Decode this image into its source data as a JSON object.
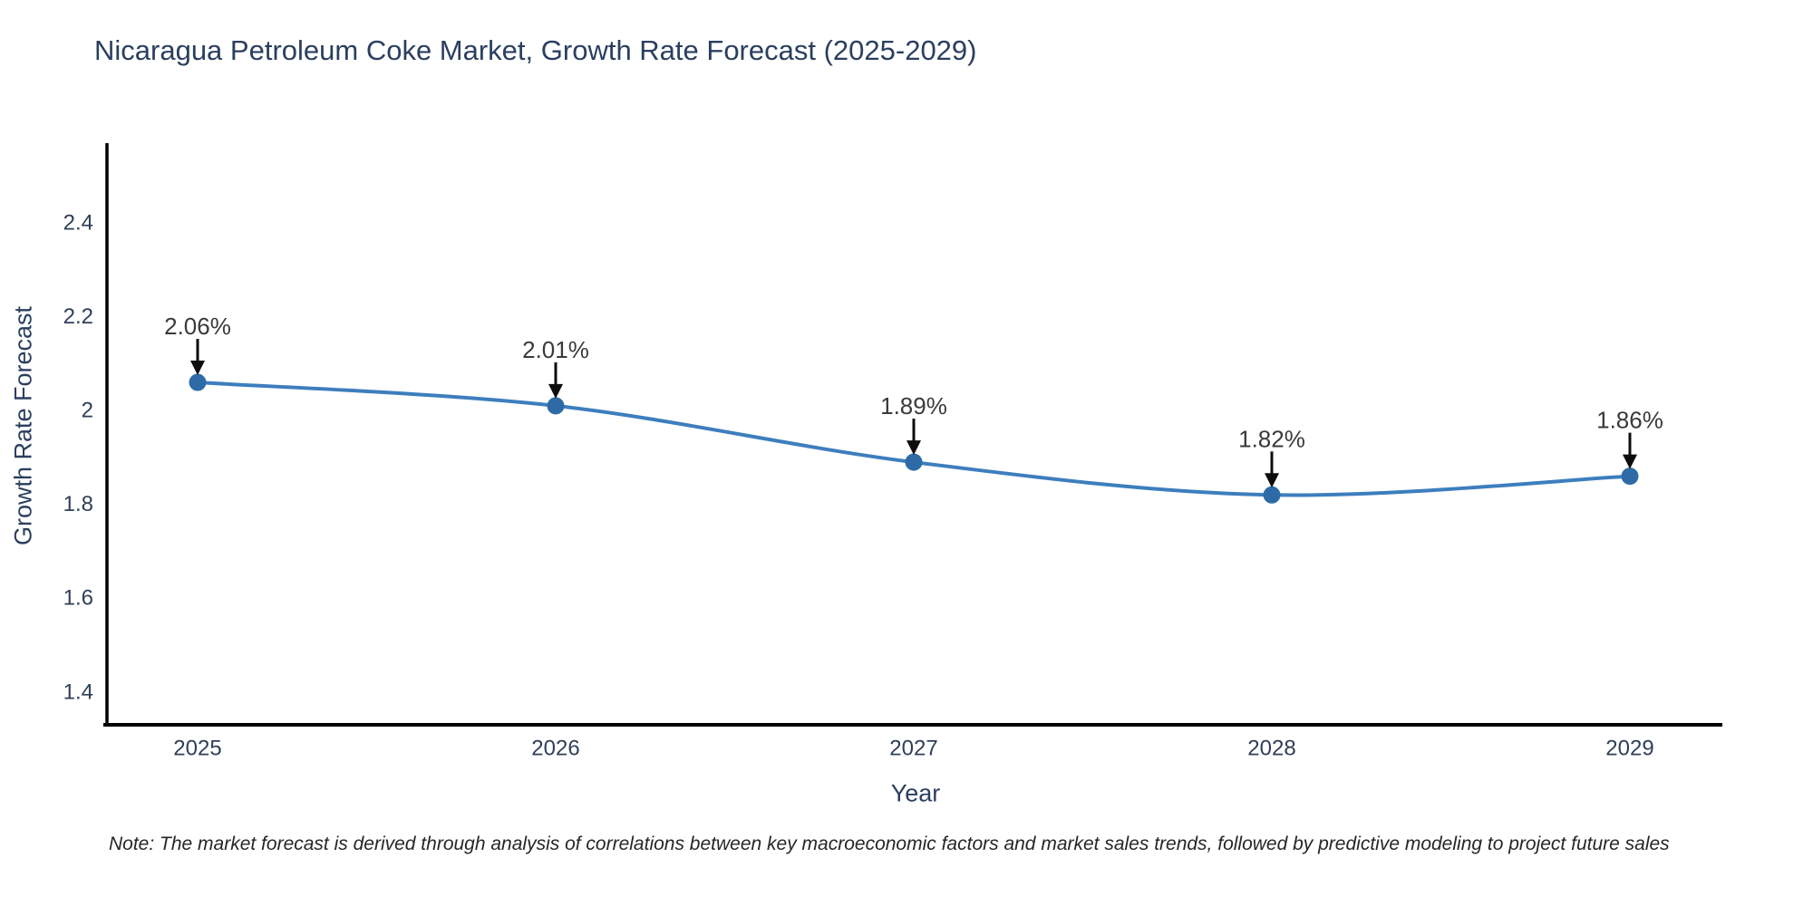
{
  "title": {
    "text": "Nicaragua Petroleum Coke Market, Growth Rate Forecast (2025-2029)",
    "color": "#2a3f5f"
  },
  "note": {
    "text": "Note: The market forecast is derived through analysis of correlations between key macroeconomic factors and market sales trends, followed by predictive modeling to project future sales"
  },
  "chart_data": {
    "type": "line",
    "title": "Nicaragua Petroleum Coke Market, Growth Rate Forecast (2025-2029)",
    "categories": [
      "2025",
      "2026",
      "2027",
      "2028",
      "2029"
    ],
    "series": [
      {
        "name": "Growth Rate Forecast",
        "values": [
          2.06,
          2.01,
          1.89,
          1.82,
          1.86
        ]
      }
    ],
    "point_labels": [
      "2.06%",
      "2.01%",
      "1.89%",
      "1.82%",
      "1.86%"
    ],
    "xlabel": "Year",
    "ylabel": "Growth Rate Forecast",
    "ylim": [
      1.33,
      2.57
    ],
    "yticks": [
      2.4,
      2.2,
      2.0,
      1.8,
      1.6,
      1.4
    ],
    "ytick_labels": [
      "2.4",
      "2.2",
      "2",
      "1.8",
      "1.6",
      "1.4"
    ],
    "grid": false,
    "legend_position": "none",
    "line_shape": "spline",
    "colors": {
      "line": "#3d7ebd",
      "marker": "#2e6ba6",
      "axis": "#000000",
      "tick_label": "#2f3f58",
      "annotation_text": "#3a3a3a",
      "annotation_arrow": "#0d0d0d"
    }
  }
}
